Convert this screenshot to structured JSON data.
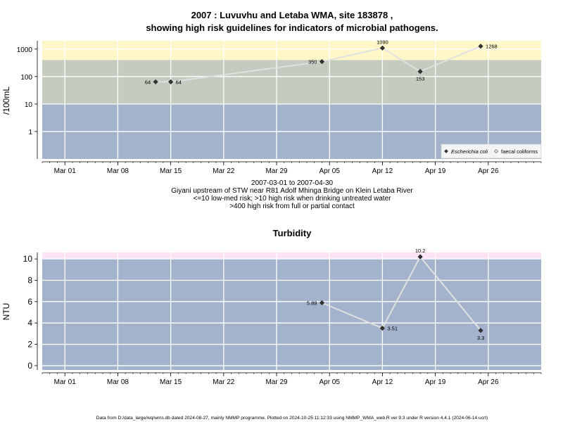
{
  "chart_data": [
    {
      "type": "line",
      "title": "2007 : Luvuvhu and Letaba WMA, site 183878 ,",
      "subtitle": "showing high risk guidelines for indicators of microbial pathogens.",
      "xlabel_lines": [
        "2007-03-01 to 2007-04-30",
        "Giyani upstream of STW near R81 Adolf Mhinga Bridge on Klein Letaba River",
        "<=10 low-med risk; >10 high risk when drinking untreated water",
        ">400 high risk from full or partial contact"
      ],
      "ylabel": "/100mL",
      "y_scale": "log",
      "ylim": [
        0.1,
        2000
      ],
      "yticks": [
        1,
        10,
        100,
        1000
      ],
      "ytick_labels": [
        "1",
        "10",
        "100",
        "1000"
      ],
      "xlim": [
        "2007-02-26",
        "2007-05-03"
      ],
      "xticks": [
        "2007-03-01",
        "2007-03-08",
        "2007-03-15",
        "2007-03-22",
        "2007-03-29",
        "2007-04-05",
        "2007-04-12",
        "2007-04-19",
        "2007-04-26"
      ],
      "xtick_labels": [
        "Mar 01",
        "Mar 08",
        "Mar 15",
        "Mar 22",
        "Mar 29",
        "Apr 05",
        "Apr 12",
        "Apr 19",
        "Apr 26"
      ],
      "grid": true,
      "bands": [
        {
          "from": 0.1,
          "to": 10,
          "color": "#a3b3cc"
        },
        {
          "from": 10,
          "to": 400,
          "color": "#c3ccbf"
        },
        {
          "from": 400,
          "to": 2000,
          "color": "#fff7c8"
        }
      ],
      "series": [
        {
          "name": "Escherichia coli",
          "marker": "diamond-filled",
          "color": "#333333",
          "line_color": "#e0e0e0",
          "points": [
            {
              "x": "2007-03-13",
              "y": 64,
              "label": "64",
              "label_pos": "left"
            },
            {
              "x": "2007-03-15",
              "y": 64,
              "label": "64",
              "label_pos": "right"
            },
            {
              "x": "2007-04-04",
              "y": 350,
              "label": "350",
              "label_pos": "left"
            },
            {
              "x": "2007-04-12",
              "y": 1090,
              "label": "1090",
              "label_pos": "top"
            },
            {
              "x": "2007-04-17",
              "y": 153,
              "label": "153",
              "label_pos": "bottom"
            },
            {
              "x": "2007-04-25",
              "y": 1268,
              "label": "1268",
              "label_pos": "right"
            }
          ]
        }
      ],
      "legend": {
        "placement": "bottom-right",
        "entries": [
          {
            "label": "Escherichia coli",
            "marker": "diamond-filled",
            "italic": true
          },
          {
            "label": "faecal coliforms",
            "marker": "diamond-open",
            "italic": false
          }
        ]
      }
    },
    {
      "type": "line",
      "title": "Turbidity",
      "ylabel": "NTU",
      "y_scale": "linear",
      "ylim": [
        -0.4,
        10.6
      ],
      "yticks": [
        0,
        2,
        4,
        6,
        8,
        10
      ],
      "ytick_labels": [
        "0",
        "2",
        "4",
        "6",
        "8",
        "10"
      ],
      "xlim": [
        "2007-02-26",
        "2007-05-03"
      ],
      "xticks": [
        "2007-03-01",
        "2007-03-08",
        "2007-03-15",
        "2007-03-22",
        "2007-03-29",
        "2007-04-05",
        "2007-04-12",
        "2007-04-19",
        "2007-04-26"
      ],
      "xtick_labels": [
        "Mar 01",
        "Mar 08",
        "Mar 15",
        "Mar 22",
        "Mar 29",
        "Apr 05",
        "Apr 12",
        "Apr 19",
        "Apr 26"
      ],
      "grid": true,
      "bands": [
        {
          "from": -0.4,
          "to": 10,
          "color": "#a3b3cc"
        },
        {
          "from": 10,
          "to": 10.6,
          "color": "#fde3f5"
        }
      ],
      "series": [
        {
          "marker": "diamond-filled",
          "color": "#333333",
          "line_color": "#e0e0e0",
          "points": [
            {
              "x": "2007-04-04",
              "y": 5.89,
              "label": "5.89",
              "label_pos": "left"
            },
            {
              "x": "2007-04-12",
              "y": 3.51,
              "label": "3.51",
              "label_pos": "right"
            },
            {
              "x": "2007-04-17",
              "y": 10.2,
              "label": "10.2",
              "label_pos": "top"
            },
            {
              "x": "2007-04-25",
              "y": 3.3,
              "label": "3.3",
              "label_pos": "bottom"
            }
          ]
        }
      ]
    }
  ],
  "footer": "Data from D:/data_large/wq/wms.db dated 2024-08-27, mainly NMMP programme. Plotted on 2024-10-25 11:12:33 using NMMP_WMA_web.R ver 9.3 under R version 4.4.1 (2024-06-14 ucrt)"
}
